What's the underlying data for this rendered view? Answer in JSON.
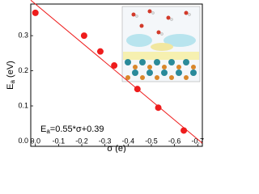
{
  "chart_data": {
    "type": "scatter",
    "x_label": "σ (e)",
    "y_label": {
      "main": "E",
      "sub": "a",
      "unit": " (eV)"
    },
    "annotation": {
      "main": "E",
      "sub": "a",
      "rest": "=0.55*σ+0.39"
    },
    "x": [
      0,
      -0.21,
      -0.28,
      -0.34,
      -0.44,
      -0.53,
      -0.64
    ],
    "series": [
      {
        "values": [
          0.365,
          0.3,
          0.255,
          0.215,
          0.148,
          0.095,
          0.03
        ],
        "color": "#ee1c1c"
      }
    ],
    "fit": {
      "slope": 0.55,
      "intercept": 0.39,
      "color": "#ee1c1c"
    },
    "xlim": [
      0.02,
      -0.72
    ],
    "ylim": [
      -0.015,
      0.39
    ],
    "xticks": [
      {
        "value": 0,
        "label": "0.0"
      },
      -0.1,
      -0.2,
      -0.3,
      -0.4,
      -0.5,
      -0.6,
      -0.7
    ],
    "yticks": [
      {
        "value": 0,
        "label": "0.0"
      },
      0.1,
      0.2,
      0.3
    ]
  }
}
